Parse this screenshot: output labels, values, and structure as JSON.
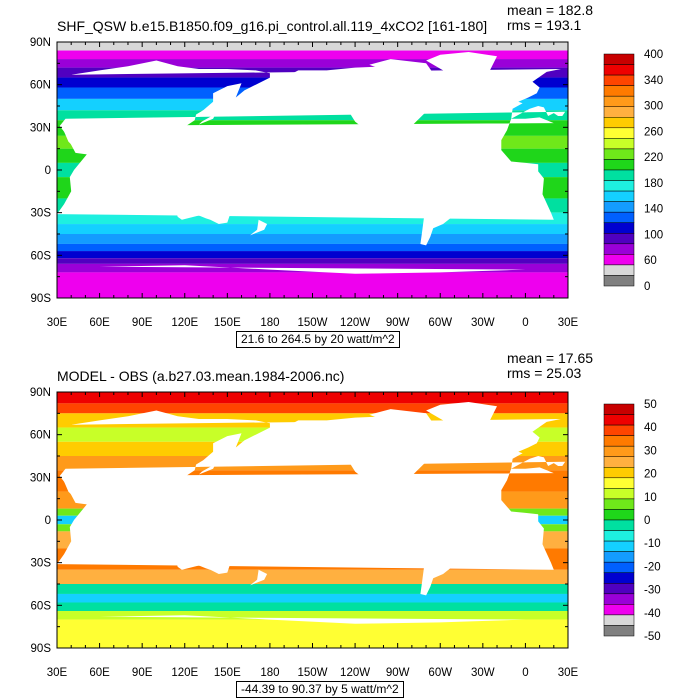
{
  "panels": [
    {
      "title": "SHF_QSW b.e15.B1850.f09_g16.pi_control.all.119_4xCO2 [161-180]",
      "mean": "mean = 182.8",
      "rms": "rms = 193.1",
      "range_note": "21.6 to 264.5 by 20 watt/m^2",
      "lat_labels": [
        "90N",
        "60N",
        "30N",
        "0",
        "30S",
        "60S",
        "90S"
      ],
      "lon_labels": [
        "30E",
        "60E",
        "90E",
        "120E",
        "150E",
        "180",
        "150W",
        "120W",
        "90W",
        "60W",
        "30W",
        "0",
        "30E"
      ],
      "colorbar": {
        "labels": [
          "400",
          "340",
          "300",
          "260",
          "220",
          "180",
          "140",
          "100",
          "60",
          "0"
        ],
        "colors": [
          "#c80000",
          "#ee0000",
          "#ff4400",
          "#ff7a00",
          "#ff9a1a",
          "#ffb040",
          "#ffcc00",
          "#ffff33",
          "#c8ff28",
          "#6fe81a",
          "#1fd61a",
          "#00e0a0",
          "#1ef0e0",
          "#14d0ff",
          "#149cff",
          "#0060ff",
          "#0000d0",
          "#5000c0",
          "#9a00d8",
          "#ee00ee",
          "#d8d8d8",
          "#808080"
        ]
      },
      "chart_data": {
        "type": "heatmap",
        "title": "SHF_QSW b.e15.B1850.f09_g16.pi_control.all.119_4xCO2 [161-180]",
        "units": "watt/m^2",
        "mean": 182.8,
        "rms": 193.1,
        "contour_min": 21.6,
        "contour_max": 264.5,
        "contour_interval": 20,
        "xlim": [
          30,
          390
        ],
        "ylim": [
          -90,
          90
        ],
        "zonal_profile": {
          "lat": [
            85,
            75,
            60,
            45,
            30,
            15,
            0,
            -15,
            -30,
            -45,
            -60,
            -70
          ],
          "value": [
            10,
            60,
            100,
            170,
            230,
            250,
            220,
            240,
            200,
            150,
            90,
            50
          ]
        }
      }
    },
    {
      "title": "MODEL - OBS (a.b27.03.mean.1984-2006.nc)",
      "mean": "mean = 17.65",
      "rms": "rms = 25.03",
      "range_note": "-44.39 to 90.37 by 5 watt/m^2",
      "lat_labels": [
        "90N",
        "60N",
        "30N",
        "0",
        "30S",
        "60S",
        "90S"
      ],
      "lon_labels": [
        "30E",
        "60E",
        "90E",
        "120E",
        "150E",
        "180",
        "150W",
        "120W",
        "90W",
        "60W",
        "30W",
        "0",
        "30E"
      ],
      "colorbar": {
        "labels": [
          "50",
          "40",
          "30",
          "20",
          "10",
          "0",
          "-10",
          "-20",
          "-30",
          "-40",
          "-50"
        ],
        "colors": [
          "#c80000",
          "#ee0000",
          "#ff4400",
          "#ff7a00",
          "#ff9a1a",
          "#ffb040",
          "#ffcc00",
          "#ffff33",
          "#c8ff28",
          "#6fe81a",
          "#1fd61a",
          "#00e0a0",
          "#1ef0e0",
          "#14d0ff",
          "#149cff",
          "#0060ff",
          "#0000d0",
          "#5000c0",
          "#9a00d8",
          "#ee00ee",
          "#d8d8d8",
          "#808080"
        ]
      },
      "chart_data": {
        "type": "heatmap",
        "title": "MODEL - OBS (a.b27.03.mean.1984-2006.nc)",
        "units": "watt/m^2",
        "mean": 17.65,
        "rms": 25.03,
        "contour_min": -44.39,
        "contour_max": 90.37,
        "contour_interval": 5,
        "xlim": [
          30,
          390
        ],
        "ylim": [
          -90,
          90
        ],
        "zonal_profile": {
          "lat": [
            85,
            70,
            55,
            40,
            25,
            10,
            0,
            -10,
            -25,
            -40,
            -50,
            -65
          ],
          "value": [
            50,
            30,
            10,
            25,
            30,
            25,
            -20,
            20,
            35,
            20,
            -15,
            10
          ]
        }
      }
    }
  ]
}
